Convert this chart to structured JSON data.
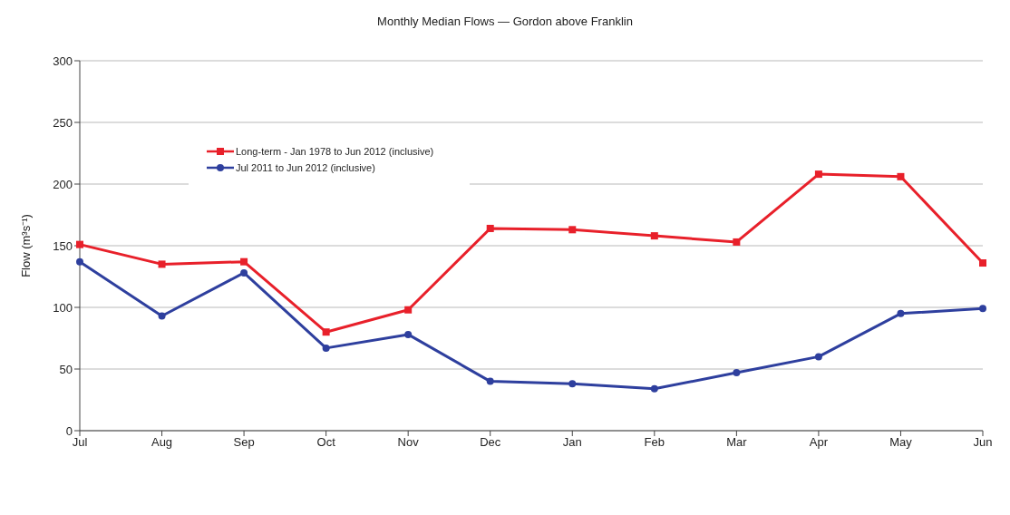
{
  "chart_data": {
    "type": "line",
    "title": "Monthly Median Flows — Gordon above Franklin",
    "ylabel": "Flow (m³s⁻¹)",
    "categories": [
      "Jul",
      "Aug",
      "Sep",
      "Oct",
      "Nov",
      "Dec",
      "Jan",
      "Feb",
      "Mar",
      "Apr",
      "May",
      "Jun"
    ],
    "series": [
      {
        "name": "Long-term - Jan 1978 to Jun 2012 (inclusive)",
        "color": "#e8202a",
        "marker": "square",
        "values": [
          151,
          135,
          137,
          80,
          98,
          164,
          163,
          158,
          153,
          208,
          206,
          136
        ]
      },
      {
        "name": "Jul 2011 to Jun 2012 (inclusive)",
        "color": "#2e3f9e",
        "marker": "circle",
        "values": [
          137,
          93,
          128,
          67,
          78,
          40,
          38,
          34,
          47,
          60,
          95,
          99
        ]
      }
    ],
    "ylim": [
      0,
      300
    ],
    "yticks": [
      0,
      50,
      100,
      150,
      200,
      250,
      300
    ],
    "grid": "y",
    "legend": "top left",
    "line_style": "solid"
  }
}
